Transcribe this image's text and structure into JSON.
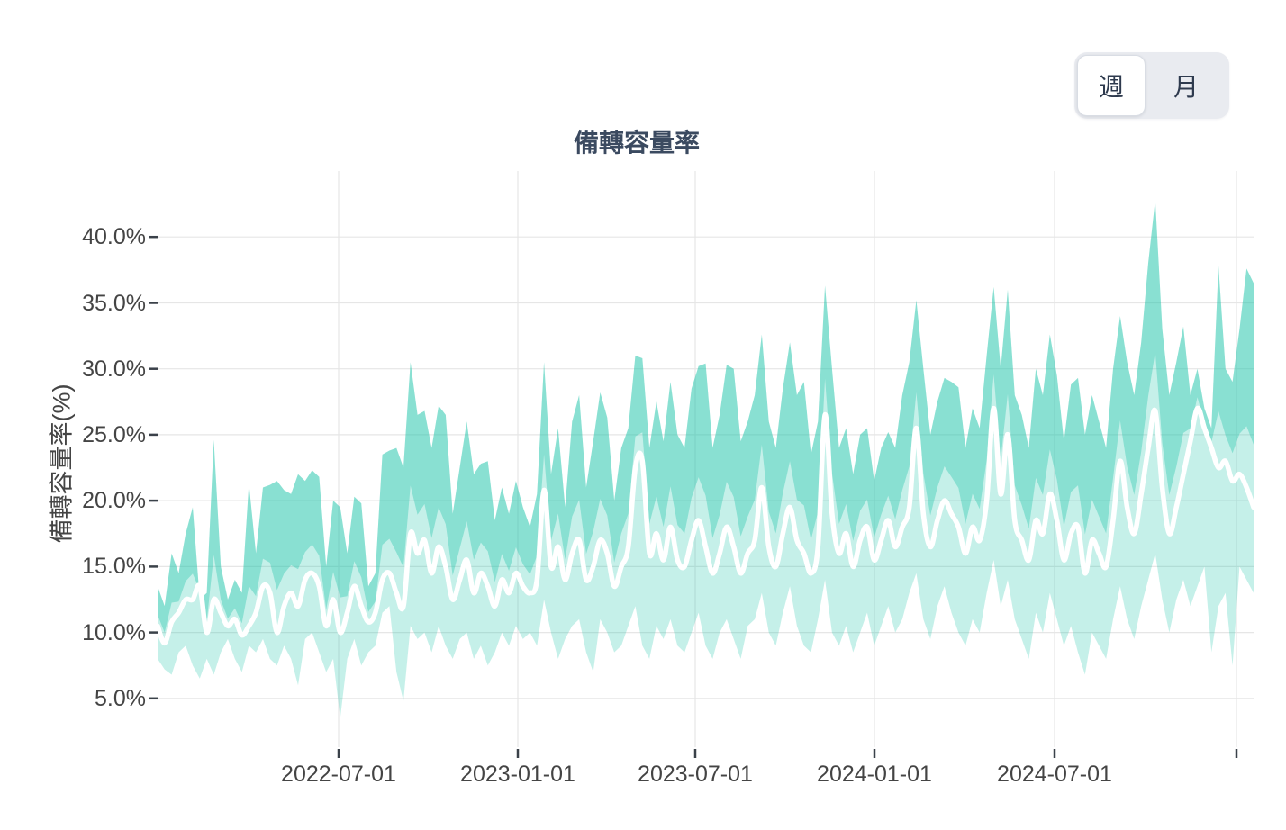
{
  "controls": {
    "week_label": "週",
    "month_label": "月",
    "selected": "週"
  },
  "chart_data": {
    "type": "area",
    "title": "備轉容量率",
    "ylabel": "備轉容量率(%)",
    "x_tick_labels": [
      "2022-07-01",
      "2023-01-01",
      "2023-07-01",
      "2024-01-01",
      "2024-07-01",
      ""
    ],
    "y_tick_labels": [
      "5.0%",
      "10.0%",
      "15.0%",
      "20.0%",
      "25.0%",
      "30.0%",
      "35.0%",
      "40.0%"
    ],
    "y_tick_values": [
      5,
      10,
      15,
      20,
      25,
      30,
      35,
      40
    ],
    "ylim": [
      1.3,
      45
    ],
    "grid": true,
    "legend": "none",
    "points": 157,
    "x_unit": "week",
    "series": [
      {
        "name": "max",
        "values": [
          13.5,
          12,
          16,
          14.5,
          17.5,
          19.5,
          12.5,
          13,
          24.6,
          15,
          12.5,
          14,
          13,
          21.3,
          16,
          21,
          21.2,
          21.5,
          20.8,
          20.5,
          22,
          21.5,
          22.3,
          21.8,
          15,
          20,
          19.5,
          16,
          20.3,
          19.8,
          13.5,
          14.5,
          23.5,
          23.8,
          24,
          22.5,
          30.5,
          26.5,
          26.8,
          24,
          27.2,
          26.5,
          19,
          22.5,
          26,
          22,
          22.8,
          23,
          18.5,
          21,
          19,
          21.5,
          19.5,
          18,
          20.5,
          30.5,
          22,
          25.5,
          19.5,
          26,
          28,
          21,
          24.5,
          28.2,
          26.3,
          20,
          24,
          25.5,
          31,
          30.8,
          24,
          27.5,
          24.5,
          29,
          25,
          24,
          28.5,
          30.2,
          30.4,
          24,
          26.5,
          30.3,
          30,
          24.5,
          26,
          28,
          32.6,
          26,
          24,
          28.5,
          32,
          28,
          29,
          23.5,
          26,
          36.3,
          30,
          24,
          25.5,
          22,
          25,
          25.5,
          21.5,
          24,
          25.2,
          24,
          28,
          30.5,
          35.2,
          30,
          25,
          27.5,
          29.3,
          29,
          28.6,
          24,
          27,
          25.5,
          31,
          36.2,
          30,
          36,
          28,
          26.5,
          24,
          30,
          28,
          32.6,
          29.5,
          24.5,
          28.8,
          29.3,
          25,
          28,
          26,
          24,
          30,
          34,
          30.5,
          28,
          32,
          38,
          42.8,
          33,
          28,
          30.5,
          33.2,
          28,
          30,
          27,
          25.5,
          37.8,
          30,
          29,
          33,
          37.6,
          36.5
        ]
      },
      {
        "name": "avg",
        "values": [
          10.5,
          9.2,
          10.8,
          11.5,
          12.5,
          12.5,
          13.5,
          10,
          12.5,
          11.5,
          10.5,
          11,
          9.8,
          10.5,
          11.5,
          13.5,
          13,
          10,
          12,
          13,
          12,
          14,
          14.5,
          13.5,
          10.5,
          12.5,
          10,
          11.5,
          13.5,
          12,
          10.8,
          11.5,
          14,
          14.5,
          13,
          12,
          17.5,
          16,
          17,
          14.5,
          16.5,
          15,
          12.5,
          14,
          15.5,
          13,
          14.5,
          13.5,
          12,
          14,
          13,
          14.5,
          13.5,
          13,
          14,
          20.8,
          15,
          16.5,
          14,
          16,
          17,
          14,
          15,
          17,
          16,
          13.5,
          15,
          16.5,
          22.5,
          23,
          16,
          17.5,
          15.5,
          18,
          15.5,
          15,
          17,
          18.5,
          16.5,
          14.5,
          16,
          18,
          16.5,
          14.5,
          16,
          17,
          21,
          16.5,
          15,
          17.5,
          19.5,
          17,
          16,
          14.5,
          16.5,
          26.5,
          19,
          16,
          17.5,
          15,
          17,
          18,
          15.5,
          17,
          18.5,
          16.5,
          18,
          19.5,
          25.5,
          19,
          16.5,
          18.5,
          20,
          19,
          18,
          16,
          18,
          17,
          20,
          27,
          20.5,
          25,
          18.5,
          17,
          15.5,
          18.5,
          17.5,
          20.5,
          18.5,
          15.5,
          17.5,
          18,
          14.5,
          17,
          16,
          15,
          18.5,
          23,
          19.5,
          17.5,
          20.5,
          24,
          26.8,
          21,
          17.5,
          19.5,
          22,
          24.5,
          27,
          25.5,
          24,
          22.5,
          23,
          21.5,
          22,
          21,
          19.5
        ]
      },
      {
        "name": "min",
        "values": [
          8,
          7.2,
          6.8,
          8.5,
          9,
          7.5,
          6.5,
          8,
          6.8,
          8.5,
          9.5,
          8,
          7,
          9,
          8.5,
          9.5,
          8,
          7.5,
          9,
          8,
          6,
          9.5,
          10,
          8.5,
          7,
          8,
          3.5,
          8,
          9.5,
          7.5,
          8.5,
          9,
          11.5,
          12,
          7,
          4.8,
          10.5,
          9.5,
          10,
          8.5,
          10.5,
          9,
          8,
          9.5,
          10,
          8,
          9,
          7.5,
          8.5,
          10,
          9,
          10.5,
          9.5,
          10,
          9,
          12.5,
          10,
          8,
          9.5,
          10.5,
          11,
          8.5,
          7,
          11,
          10,
          8.5,
          9,
          10.5,
          12,
          9,
          8,
          10.5,
          9.5,
          11,
          9,
          8.5,
          10,
          11.5,
          9,
          8,
          10,
          11,
          9.5,
          8,
          10.5,
          11,
          13,
          10,
          9,
          11.5,
          13.5,
          10.5,
          9,
          8.5,
          11,
          14,
          10,
          9,
          10.5,
          8.5,
          10,
          11.5,
          9,
          10.5,
          12,
          10,
          11,
          13,
          14.5,
          11,
          9.5,
          12,
          13.5,
          11.5,
          10,
          9,
          11,
          10,
          13,
          15.5,
          12,
          14,
          11,
          9.5,
          8,
          11.5,
          10,
          13,
          11,
          9,
          10.5,
          8.5,
          6.8,
          10,
          9,
          8,
          11,
          13.5,
          11,
          9.5,
          12,
          14,
          16,
          12.5,
          10,
          12.5,
          14,
          12,
          13.5,
          15,
          8.5,
          12,
          13,
          7.5,
          15,
          14,
          13
        ]
      }
    ],
    "colors": {
      "band_base": "#19c3a8",
      "band_light_result": "#c9f3ea",
      "band_dark_result": "#89e0d3",
      "line": "#ffffff",
      "grid": "#e6e6e6",
      "tick_mark": "#3a4149",
      "tick_text": "#444444",
      "title_text": "#3b4a60",
      "toggle_bg": "#e9ebf0",
      "toggle_active_bg": "#ffffff",
      "toggle_text": "#2e3a4e",
      "toggle_border": "#d9dde4"
    }
  }
}
